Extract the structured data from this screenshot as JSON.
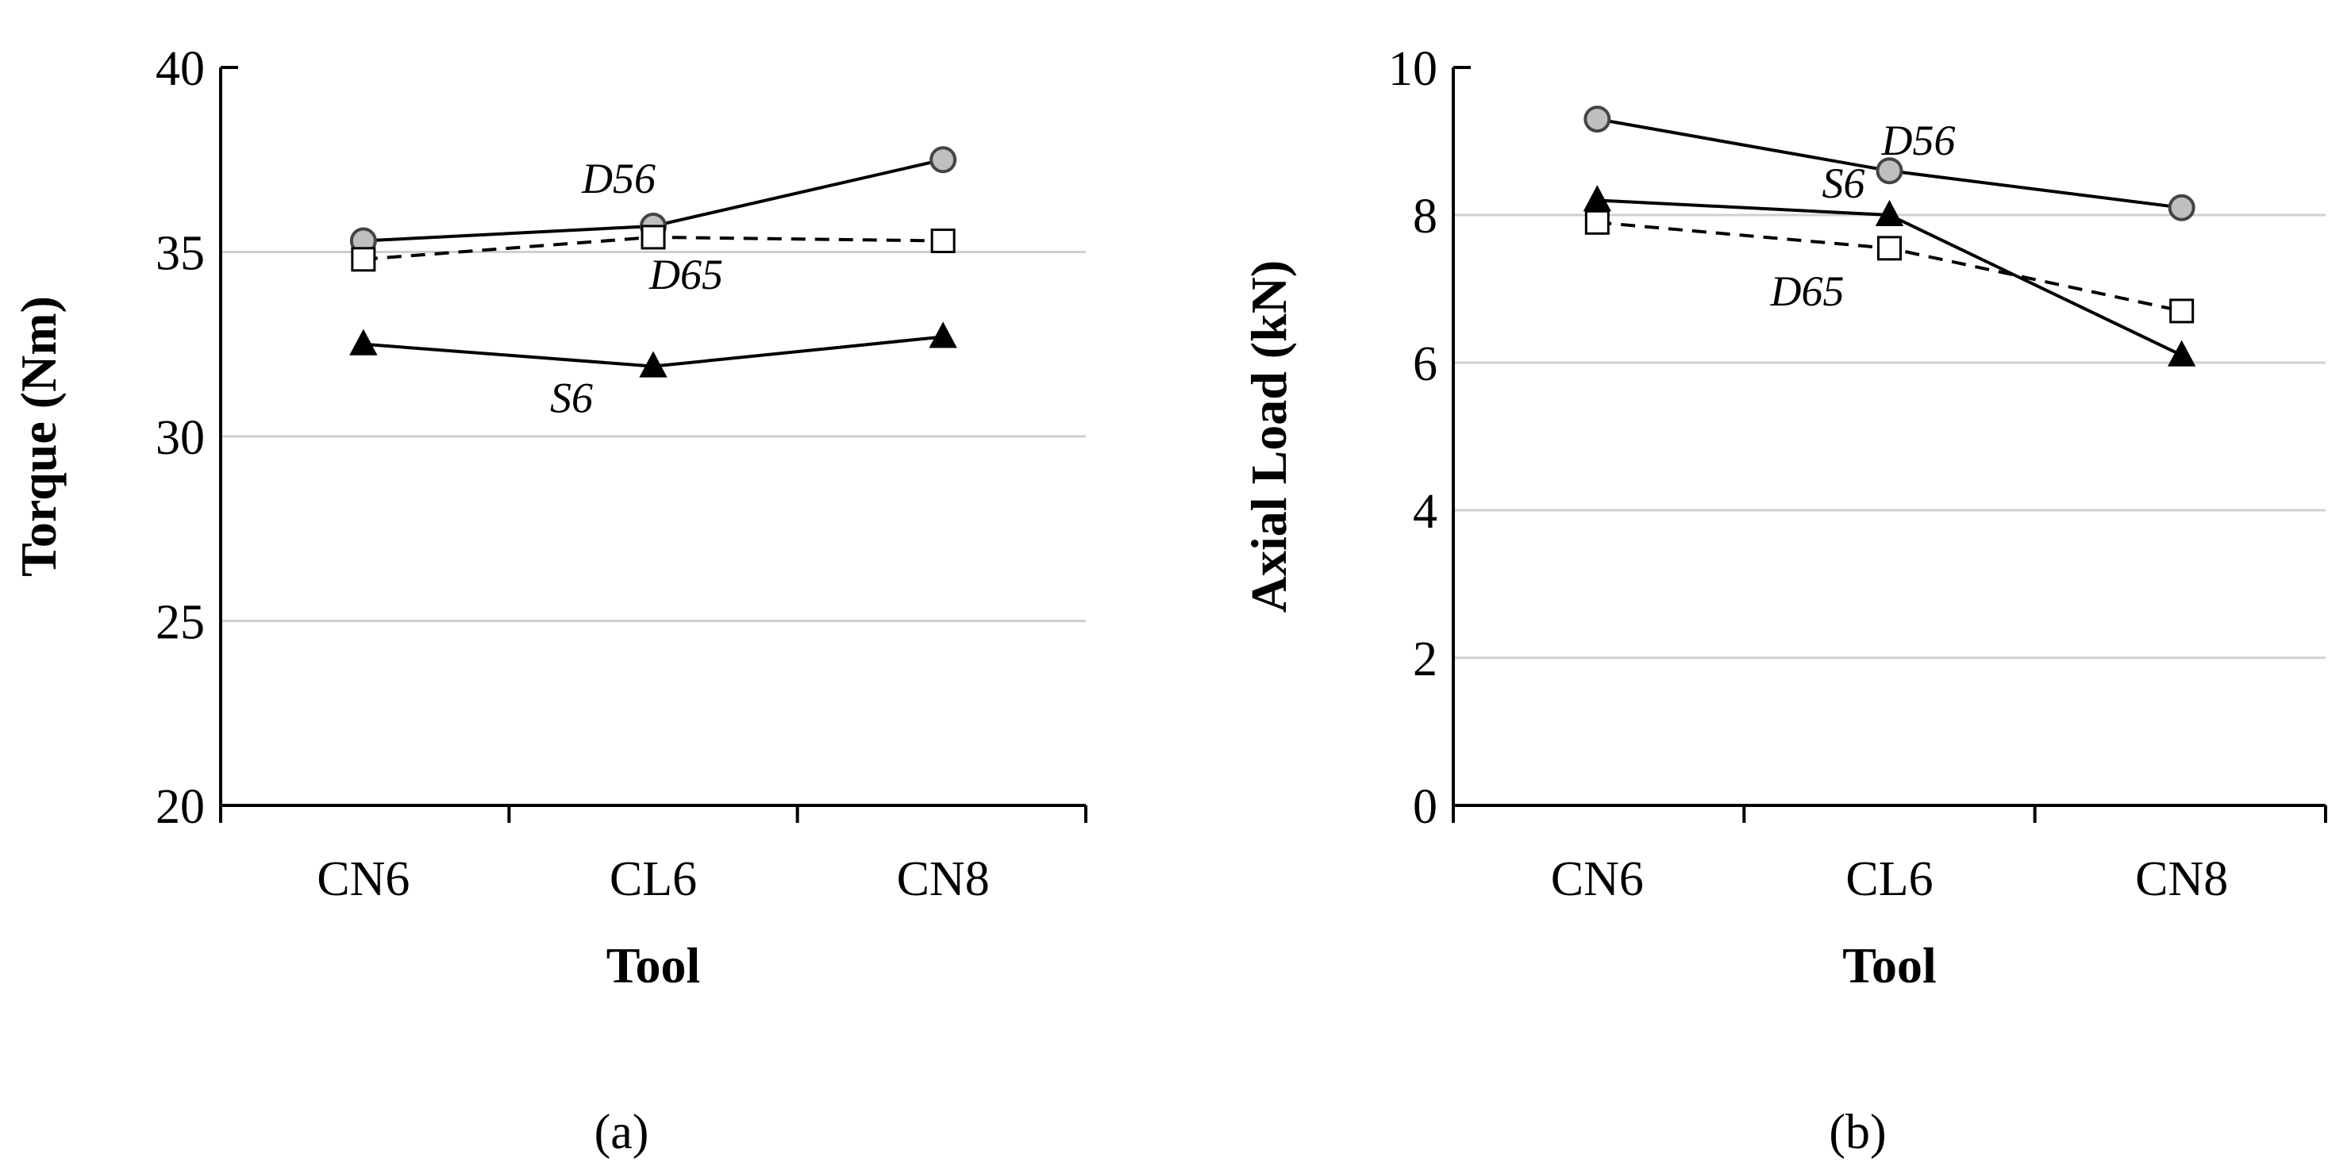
{
  "chart_data": [
    {
      "type": "line",
      "panel_label": "(a)",
      "xlabel": "Tool",
      "ylabel": "Torque (Nm)",
      "categories": [
        "CN6",
        "CL6",
        "CN8"
      ],
      "ylim": [
        20,
        40
      ],
      "yticks": [
        20,
        25,
        30,
        35,
        40
      ],
      "grid": true,
      "series": [
        {
          "name": "D56",
          "values": [
            35.3,
            35.7,
            37.5
          ],
          "marker": "circle",
          "line": "solid",
          "marker_fill": "#bfbfbf"
        },
        {
          "name": "D65",
          "values": [
            34.8,
            35.4,
            35.3
          ],
          "marker": "square",
          "line": "dashed",
          "marker_fill": "#ffffff"
        },
        {
          "name": "S6",
          "values": [
            32.5,
            31.9,
            32.7
          ],
          "marker": "triangle",
          "line": "solid",
          "marker_fill": "#000000"
        }
      ]
    },
    {
      "type": "line",
      "panel_label": "(b)",
      "xlabel": "Tool",
      "ylabel": "Axial Load (kN)",
      "categories": [
        "CN6",
        "CL6",
        "CN8"
      ],
      "ylim": [
        0,
        10
      ],
      "yticks": [
        0,
        2,
        4,
        6,
        8,
        10
      ],
      "grid": true,
      "series": [
        {
          "name": "D56",
          "values": [
            9.3,
            8.6,
            8.1
          ],
          "marker": "circle",
          "line": "solid",
          "marker_fill": "#bfbfbf"
        },
        {
          "name": "S6",
          "values": [
            8.2,
            8.0,
            6.1
          ],
          "marker": "triangle",
          "line": "solid",
          "marker_fill": "#000000"
        },
        {
          "name": "D65",
          "values": [
            7.9,
            7.55,
            6.7
          ],
          "marker": "square",
          "line": "dashed",
          "marker_fill": "#ffffff"
        }
      ]
    }
  ]
}
